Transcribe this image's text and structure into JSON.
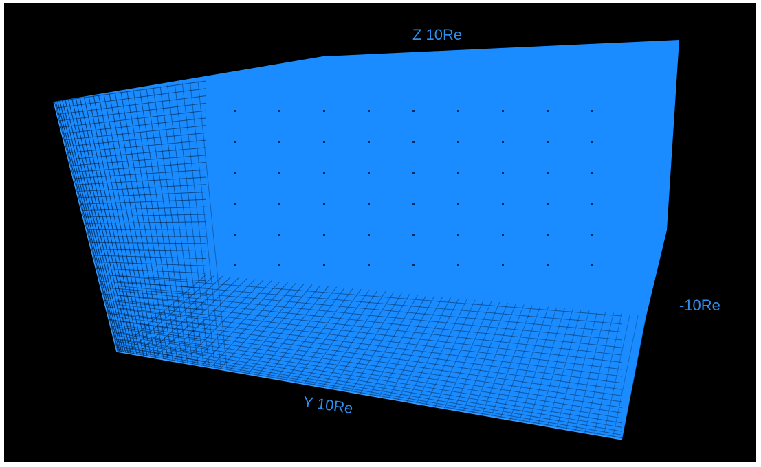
{
  "labels": {
    "z_axis": "Z 10Re",
    "x_axis": "-10Re",
    "y_axis": "Y 10Re"
  }
}
